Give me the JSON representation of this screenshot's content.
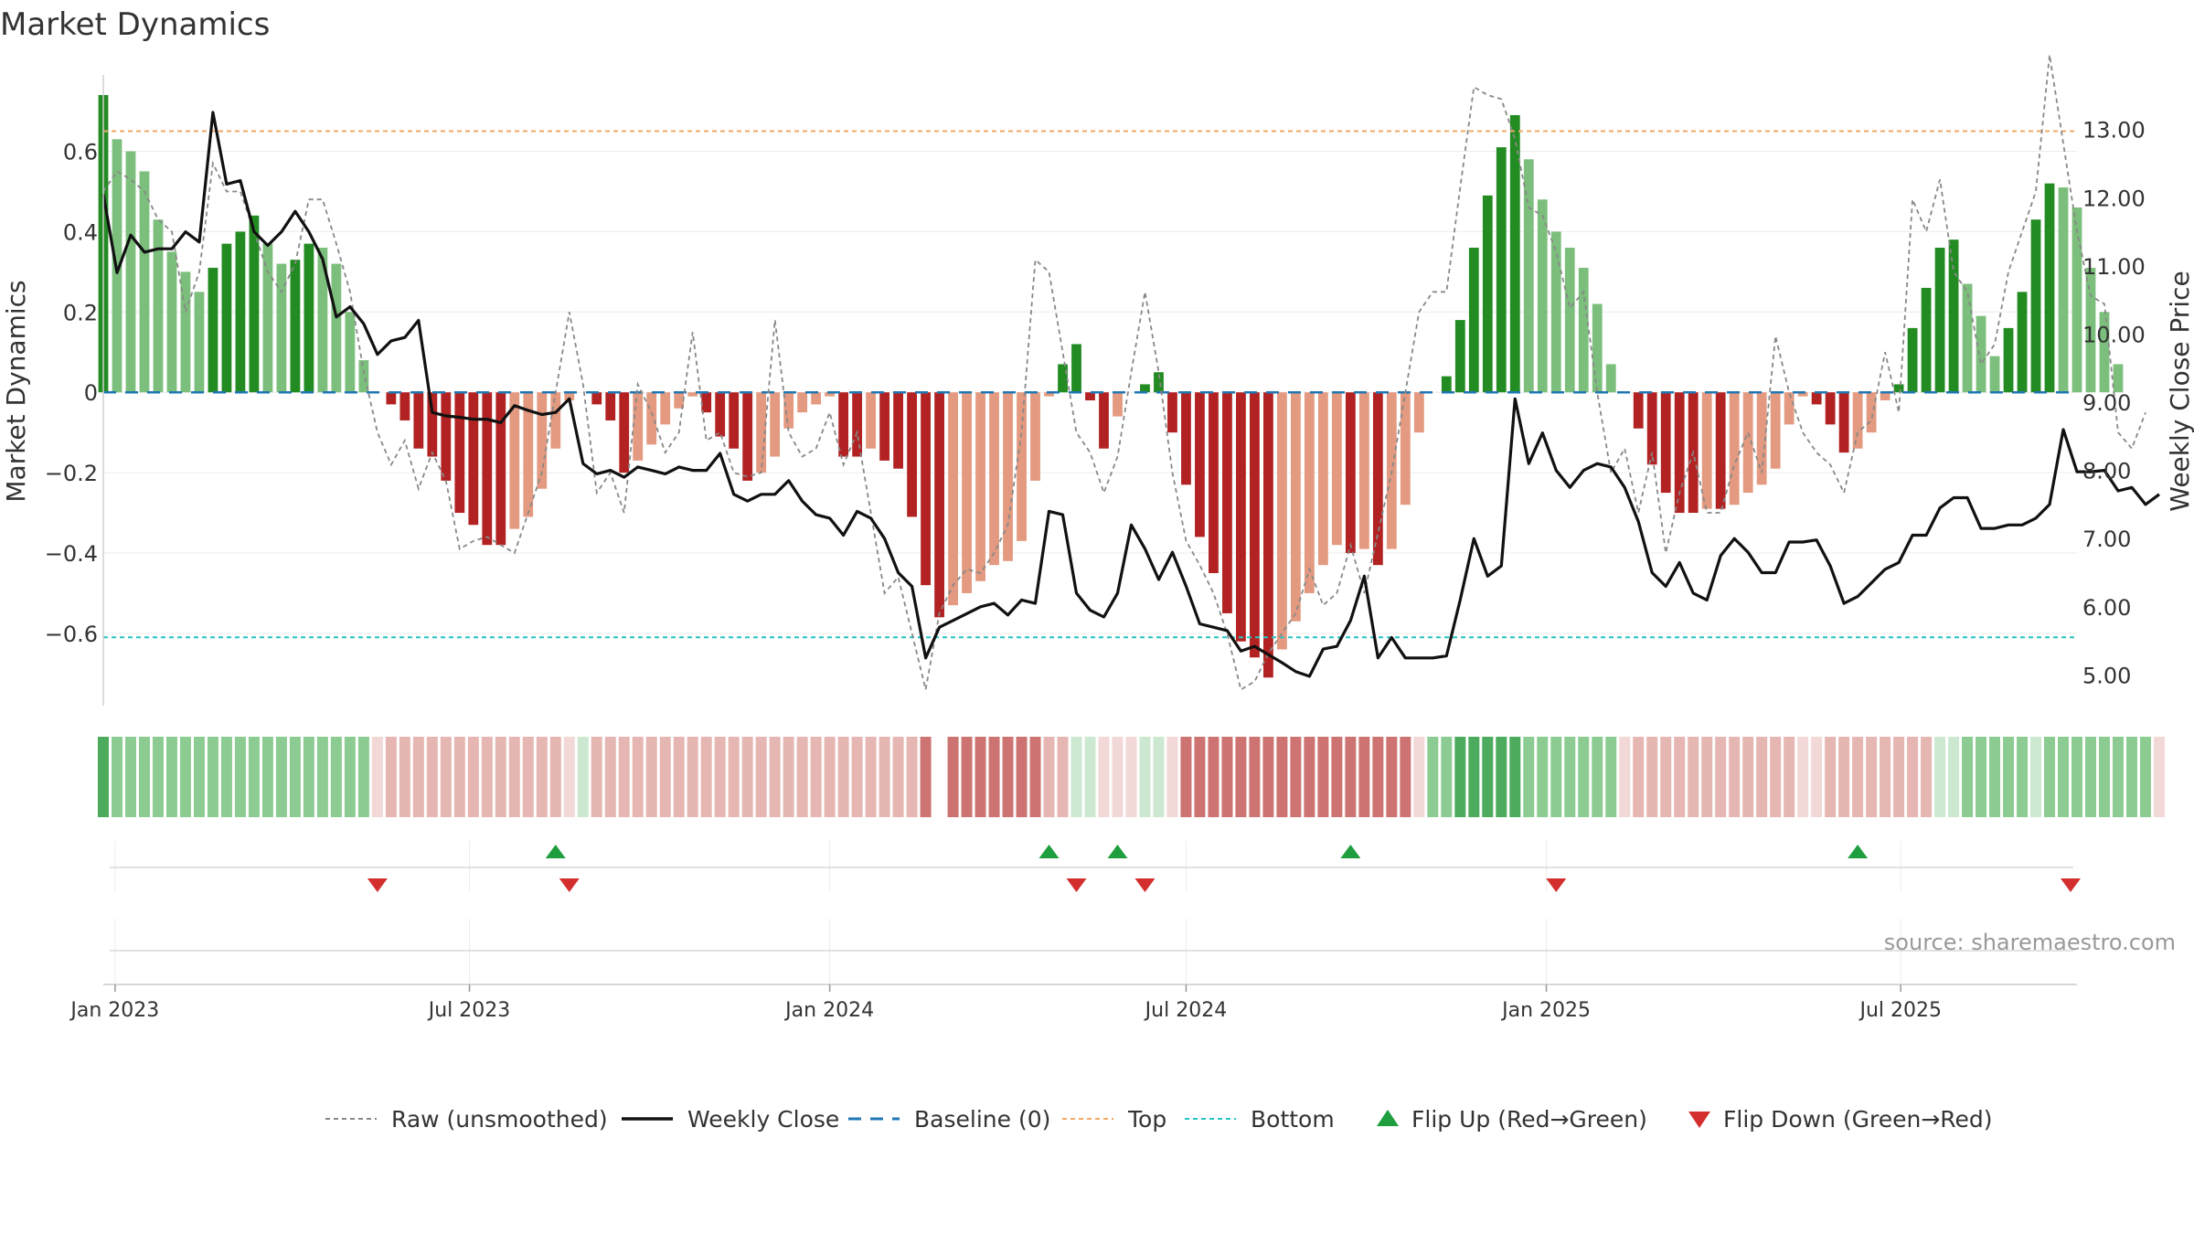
{
  "chart_data": {
    "type": "bar",
    "title": "Market Dynamics",
    "ylabel": "Market Dynamics",
    "y2label": "Weekly Close Price",
    "ylim": [
      -0.78,
      0.79
    ],
    "y2lim": [
      4.55,
      13.8
    ],
    "y_ticks": [
      "0.6",
      "0.4",
      "0.2",
      "0",
      "−0.2",
      "−0.4",
      "−0.6"
    ],
    "y_tick_values": [
      0.6,
      0.4,
      0.2,
      0,
      -0.2,
      -0.4,
      -0.6
    ],
    "y2_ticks": [
      "13.00",
      "12.00",
      "11.00",
      "10.00",
      "9.00",
      "8.00",
      "7.00",
      "6.00",
      "5.00"
    ],
    "y2_tick_values": [
      13,
      12,
      11,
      10,
      9,
      8,
      7,
      6,
      5
    ],
    "x_start": "2022-12-26",
    "x_end": "2025-09-29",
    "x_ticks": [
      {
        "date": "2023-01-01",
        "label": "Jan 2023"
      },
      {
        "date": "2023-07-01",
        "label": "Jul 2023"
      },
      {
        "date": "2024-01-01",
        "label": "Jan 2024"
      },
      {
        "date": "2024-07-01",
        "label": "Jul 2024"
      },
      {
        "date": "2025-01-01",
        "label": "Jan 2025"
      },
      {
        "date": "2025-07-01",
        "label": "Jul 2025"
      }
    ],
    "top_line": 0.65,
    "bottom_line": -0.61,
    "baseline": 0,
    "colors": {
      "strong_pos": "#228b22",
      "weak_pos": "#7cbf7c",
      "strong_neg": "#b22222",
      "weak_neg": "#e39a80",
      "close": "#111111",
      "raw": "#888888",
      "baseline": "#1f77b4",
      "top": "#f0a868",
      "bottom": "#27c4c4",
      "flip_up": "#1e9e3e",
      "flip_down": "#d32f2f"
    },
    "series": [
      {
        "name": "Market Dynamics",
        "start": "2022-12-26",
        "values": [
          0.74,
          0.63,
          0.6,
          0.55,
          0.43,
          0.35,
          0.3,
          0.25,
          0.31,
          0.37,
          0.4,
          0.44,
          0.37,
          0.32,
          0.33,
          0.37,
          0.36,
          0.32,
          0.2,
          0.08,
          0.0,
          -0.03,
          -0.07,
          -0.14,
          -0.16,
          -0.22,
          -0.3,
          -0.33,
          -0.38,
          -0.38,
          -0.34,
          -0.31,
          -0.24,
          -0.14,
          -0.02,
          0.0,
          -0.03,
          -0.07,
          -0.2,
          -0.17,
          -0.13,
          -0.08,
          -0.04,
          -0.01,
          -0.05,
          -0.11,
          -0.14,
          -0.22,
          -0.2,
          -0.16,
          -0.09,
          -0.05,
          -0.03,
          -0.01,
          -0.16,
          -0.16,
          -0.14,
          -0.17,
          -0.19,
          -0.31,
          -0.48,
          -0.56,
          -0.53,
          -0.5,
          -0.47,
          -0.43,
          -0.42,
          -0.37,
          -0.22,
          -0.01,
          0.07,
          0.12,
          -0.02,
          -0.14,
          -0.06,
          0.0,
          0.02,
          0.05,
          -0.1,
          -0.23,
          -0.36,
          -0.45,
          -0.55,
          -0.62,
          -0.66,
          -0.71,
          -0.64,
          -0.57,
          -0.5,
          -0.43,
          -0.38,
          -0.4,
          -0.39,
          -0.43,
          -0.39,
          -0.28,
          -0.1,
          0.0,
          0.04,
          0.18,
          0.36,
          0.49,
          0.61,
          0.69,
          0.58,
          0.48,
          0.4,
          0.36,
          0.31,
          0.22,
          0.07,
          0.0,
          -0.09,
          -0.18,
          -0.25,
          -0.3,
          -0.3,
          -0.29,
          -0.29,
          -0.28,
          -0.25,
          -0.23,
          -0.19,
          -0.08,
          -0.01,
          -0.03,
          -0.08,
          -0.15,
          -0.14,
          -0.1,
          -0.02,
          0.02,
          0.16,
          0.26,
          0.36,
          0.38,
          0.27,
          0.19,
          0.09,
          0.16,
          0.25,
          0.43,
          0.52,
          0.51,
          0.46,
          0.31,
          0.2,
          0.07
        ]
      },
      {
        "name": "Weekly Close",
        "start": "2022-12-26",
        "values": [
          12.05,
          10.9,
          11.45,
          11.2,
          11.25,
          11.25,
          11.5,
          11.35,
          13.25,
          12.2,
          12.25,
          11.5,
          11.3,
          11.5,
          11.8,
          11.5,
          11.1,
          10.25,
          10.4,
          10.15,
          9.7,
          9.9,
          9.95,
          10.2,
          8.85,
          8.8,
          8.78,
          8.75,
          8.75,
          8.7,
          8.95,
          8.88,
          8.82,
          8.85,
          9.05,
          8.1,
          7.95,
          8.0,
          7.9,
          8.05,
          8.0,
          7.95,
          8.05,
          8.0,
          8.0,
          8.25,
          7.65,
          7.55,
          7.65,
          7.65,
          7.85,
          7.55,
          7.35,
          7.3,
          7.05,
          7.4,
          7.3,
          7.0,
          6.5,
          6.3,
          5.25,
          5.7,
          5.8,
          5.9,
          6.0,
          6.05,
          5.88,
          6.1,
          6.05,
          7.4,
          7.35,
          6.2,
          5.95,
          5.85,
          6.2,
          7.2,
          6.85,
          6.4,
          6.8,
          6.3,
          5.75,
          5.7,
          5.65,
          5.35,
          5.42,
          5.3,
          5.18,
          5.05,
          4.98,
          5.38,
          5.42,
          5.8,
          6.45,
          5.25,
          5.55,
          5.25,
          5.25,
          5.25,
          5.28,
          6.1,
          7.0,
          6.45,
          6.6,
          9.05,
          8.1,
          8.55,
          8.0,
          7.75,
          8.0,
          8.1,
          8.05,
          7.75,
          7.25,
          6.5,
          6.3,
          6.65,
          6.2,
          6.1,
          6.75,
          7.0,
          6.8,
          6.5,
          6.5,
          6.95,
          6.95,
          6.98,
          6.6,
          6.05,
          6.15,
          6.35,
          6.55,
          6.65,
          7.05,
          7.05,
          7.45,
          7.6,
          7.6,
          7.15,
          7.15,
          7.2,
          7.2,
          7.3,
          7.5,
          8.6,
          7.98,
          7.98,
          8.0,
          7.7,
          7.75,
          7.5,
          7.65
        ]
      },
      {
        "name": "Raw (unsmoothed)",
        "start": "2022-12-26",
        "values": [
          0.5,
          0.55,
          0.53,
          0.5,
          0.43,
          0.4,
          0.2,
          0.3,
          0.57,
          0.5,
          0.5,
          0.4,
          0.3,
          0.25,
          0.32,
          0.48,
          0.48,
          0.37,
          0.25,
          0.05,
          -0.1,
          -0.18,
          -0.12,
          -0.24,
          -0.15,
          -0.22,
          -0.39,
          -0.37,
          -0.36,
          -0.38,
          -0.4,
          -0.3,
          -0.2,
          0.0,
          0.2,
          0.02,
          -0.25,
          -0.2,
          -0.3,
          0.02,
          -0.05,
          -0.15,
          -0.1,
          0.15,
          -0.12,
          -0.1,
          -0.2,
          -0.21,
          -0.2,
          0.18,
          -0.1,
          -0.16,
          -0.14,
          -0.05,
          -0.18,
          -0.1,
          -0.3,
          -0.5,
          -0.46,
          -0.6,
          -0.74,
          -0.55,
          -0.48,
          -0.44,
          -0.45,
          -0.4,
          -0.33,
          -0.1,
          0.33,
          0.3,
          0.1,
          -0.1,
          -0.15,
          -0.25,
          -0.16,
          0.05,
          0.25,
          0.05,
          -0.2,
          -0.37,
          -0.43,
          -0.5,
          -0.6,
          -0.74,
          -0.72,
          -0.65,
          -0.6,
          -0.55,
          -0.44,
          -0.53,
          -0.5,
          -0.38,
          -0.5,
          -0.35,
          -0.2,
          0.0,
          0.2,
          0.25,
          0.25,
          0.51,
          0.76,
          0.74,
          0.73,
          0.63,
          0.46,
          0.44,
          0.35,
          0.21,
          0.25,
          0.0,
          -0.2,
          -0.14,
          -0.3,
          -0.15,
          -0.4,
          -0.25,
          -0.15,
          -0.3,
          -0.3,
          -0.18,
          -0.1,
          -0.2,
          0.14,
          0.0,
          -0.1,
          -0.15,
          -0.18,
          -0.25,
          -0.1,
          -0.07,
          0.1,
          -0.05,
          0.48,
          0.4,
          0.53,
          0.3,
          0.25,
          0.07,
          0.12,
          0.3,
          0.4,
          0.5,
          0.84,
          0.62,
          0.4,
          0.24,
          0.22,
          -0.1,
          -0.14,
          -0.05
        ]
      }
    ],
    "regime_strip": {
      "start": "2022-12-26",
      "weekly_state": [
        "strong_pos",
        "weak_pos",
        "weak_pos",
        "weak_pos",
        "weak_pos",
        "weak_pos",
        "weak_pos",
        "weak_pos",
        "weak_pos",
        "weak_pos",
        "weak_pos",
        "weak_pos",
        "weak_pos",
        "weak_pos",
        "weak_pos",
        "weak_pos",
        "weak_pos",
        "weak_pos",
        "weak_pos",
        "weak_pos",
        "neutral",
        "weak_neg",
        "weak_neg",
        "weak_neg",
        "weak_neg",
        "weak_neg",
        "weak_neg",
        "weak_neg",
        "weak_neg",
        "weak_neg",
        "weak_neg",
        "weak_neg",
        "weak_neg",
        "weak_neg",
        "neutral",
        "neutral_pos",
        "weak_neg",
        "weak_neg",
        "weak_neg",
        "weak_neg",
        "weak_neg",
        "weak_neg",
        "weak_neg",
        "weak_neg",
        "weak_neg",
        "weak_neg",
        "weak_neg",
        "weak_neg",
        "weak_neg",
        "weak_neg",
        "weak_neg",
        "weak_neg",
        "weak_neg",
        "weak_neg",
        "weak_neg",
        "weak_neg",
        "weak_neg",
        "weak_neg",
        "weak_neg",
        "weak_neg",
        "strong_neg",
        "gap",
        "strong_neg",
        "strong_neg",
        "strong_neg",
        "strong_neg",
        "strong_neg",
        "strong_neg",
        "strong_neg",
        "weak_neg",
        "weak_neg",
        "neutral_pos",
        "neutral_pos",
        "neutral",
        "neutral",
        "neutral",
        "neutral_pos",
        "neutral_pos",
        "neutral",
        "strong_neg",
        "strong_neg",
        "strong_neg",
        "strong_neg",
        "strong_neg",
        "strong_neg",
        "strong_neg",
        "strong_neg",
        "strong_neg",
        "strong_neg",
        "strong_neg",
        "strong_neg",
        "strong_neg",
        "strong_neg",
        "strong_neg",
        "strong_neg",
        "strong_neg",
        "neutral",
        "weak_pos",
        "weak_pos",
        "strong_pos",
        "strong_pos",
        "strong_pos",
        "strong_pos",
        "strong_pos",
        "weak_pos",
        "weak_pos",
        "weak_pos",
        "weak_pos",
        "weak_pos",
        "weak_pos",
        "weak_pos",
        "neutral",
        "weak_neg",
        "weak_neg",
        "weak_neg",
        "weak_neg",
        "weak_neg",
        "weak_neg",
        "weak_neg",
        "weak_neg",
        "weak_neg",
        "weak_neg",
        "weak_neg",
        "weak_neg",
        "neutral",
        "neutral",
        "weak_neg",
        "weak_neg",
        "weak_neg",
        "weak_neg",
        "weak_neg",
        "weak_neg",
        "weak_neg",
        "weak_neg",
        "neutral_pos",
        "neutral_pos",
        "weak_pos",
        "weak_pos",
        "weak_pos",
        "weak_pos",
        "weak_pos",
        "neutral_pos",
        "weak_pos",
        "weak_pos",
        "weak_pos",
        "weak_pos",
        "weak_pos",
        "weak_pos",
        "weak_pos",
        "weak_pos",
        "neutral"
      ]
    },
    "flips_up": [
      "2023-08-14",
      "2024-04-22",
      "2024-05-27",
      "2024-09-23",
      "2025-06-09"
    ],
    "flips_down": [
      "2023-05-15",
      "2023-08-21",
      "2024-05-06",
      "2024-06-10",
      "2025-01-06",
      "2025-09-29"
    ],
    "legend": [
      {
        "key": "raw",
        "label": "Raw (unsmoothed)"
      },
      {
        "key": "close",
        "label": "Weekly Close"
      },
      {
        "key": "baseline",
        "label": "Baseline (0)"
      },
      {
        "key": "top",
        "label": "Top"
      },
      {
        "key": "bottom",
        "label": "Bottom"
      },
      {
        "key": "flip_up",
        "label": "Flip Up (Red→Green)"
      },
      {
        "key": "flip_down",
        "label": "Flip Down (Green→Red)"
      }
    ],
    "legend_placement": "bottom-center",
    "grid": true
  },
  "source_note": "source: sharemaestro.com"
}
